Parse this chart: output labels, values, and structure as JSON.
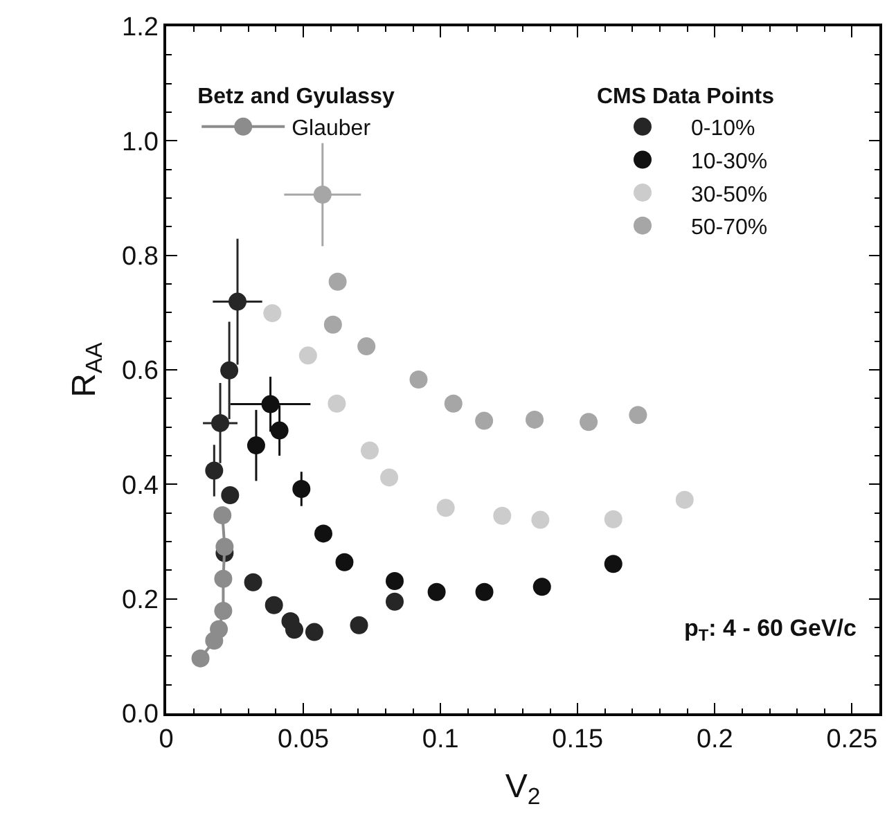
{
  "chart_data": {
    "type": "scatter",
    "xlabel": "V$_{2}$",
    "ylabel": "R$_{AA}$",
    "annotations": [
      "Betz and Gyulassy",
      "CMS Data Points",
      "p$_{T}$: 4 - 60 GeV/c"
    ],
    "xlim": [
      0,
      0.26
    ],
    "xticks": [
      0,
      0.05,
      0.1,
      0.15,
      0.2,
      0.25
    ],
    "ylim": [
      0,
      1.2
    ],
    "yticks": [
      {
        "value": 0,
        "label": "0.0"
      },
      0.2,
      0.4,
      0.6,
      0.8,
      {
        "value": 1,
        "label": "1.0"
      },
      1.2
    ],
    "legend": "top left",
    "marker": "circle",
    "series": [
      {
        "name": "Glauber",
        "type": "line",
        "color": "#8c8c8c",
        "x": [
          0.0125,
          0.0175,
          0.0192,
          0.0208,
          0.0208,
          0.0213,
          0.0205
        ],
        "values": [
          0.096,
          0.127,
          0.147,
          0.179,
          0.235,
          0.291,
          0.346
        ]
      },
      {
        "name": "0-10%",
        "color": "#262626",
        "x": [
          0.0175,
          0.0197,
          0.023,
          0.026,
          0.0233,
          0.0213,
          0.0317,
          0.0393,
          0.0453,
          0.0467,
          0.054,
          0.0703,
          0.0833
        ],
        "values": [
          0.424,
          0.507,
          0.599,
          0.719,
          0.381,
          0.28,
          0.229,
          0.189,
          0.161,
          0.146,
          0.142,
          0.154,
          0.195
        ],
        "errors": [
          0.045,
          0.07,
          0.085,
          0.11,
          null,
          null,
          null,
          null,
          null,
          null,
          null,
          null,
          null
        ],
        "xerrors": [
          null,
          0.0063,
          null,
          0.009,
          null,
          null,
          null,
          null,
          null,
          null,
          null,
          null,
          null
        ]
      },
      {
        "name": "10-30%",
        "color": "#111111",
        "x": [
          0.0328,
          0.038,
          0.0413,
          0.0493,
          0.0573,
          0.065,
          0.0833,
          0.0986,
          0.116,
          0.137,
          0.163
        ],
        "values": [
          0.468,
          0.54,
          0.494,
          0.392,
          0.314,
          0.264,
          0.231,
          0.212,
          0.212,
          0.221,
          0.261
        ],
        "errors": [
          0.062,
          0.048,
          0.044,
          0.03,
          null,
          null,
          null,
          null,
          null,
          null,
          null
        ],
        "xerrors": [
          null,
          0.0146,
          null,
          null,
          null,
          null,
          null,
          null,
          null,
          null,
          null
        ]
      },
      {
        "name": "30-50%",
        "color": "#cccccc",
        "x": [
          0.0387,
          0.0517,
          0.0622,
          0.0742,
          0.0813,
          0.1019,
          0.1225,
          0.1364,
          0.163,
          0.189
        ],
        "values": [
          0.699,
          0.625,
          0.541,
          0.459,
          0.412,
          0.359,
          0.345,
          0.338,
          0.339,
          0.373
        ]
      },
      {
        "name": "50-70%",
        "color": "#a6a6a6",
        "x": [
          0.057,
          0.0625,
          0.0608,
          0.073,
          0.092,
          0.1047,
          0.1159,
          0.1343,
          0.154,
          0.172
        ],
        "values": [
          0.906,
          0.754,
          0.679,
          0.641,
          0.583,
          0.541,
          0.511,
          0.513,
          0.509,
          0.521
        ],
        "errors": [
          0.09,
          null,
          null,
          null,
          null,
          null,
          null,
          null,
          null,
          null
        ],
        "xerrors": [
          0.014,
          null,
          null,
          null,
          null,
          null,
          null,
          null,
          null,
          null
        ]
      }
    ]
  }
}
